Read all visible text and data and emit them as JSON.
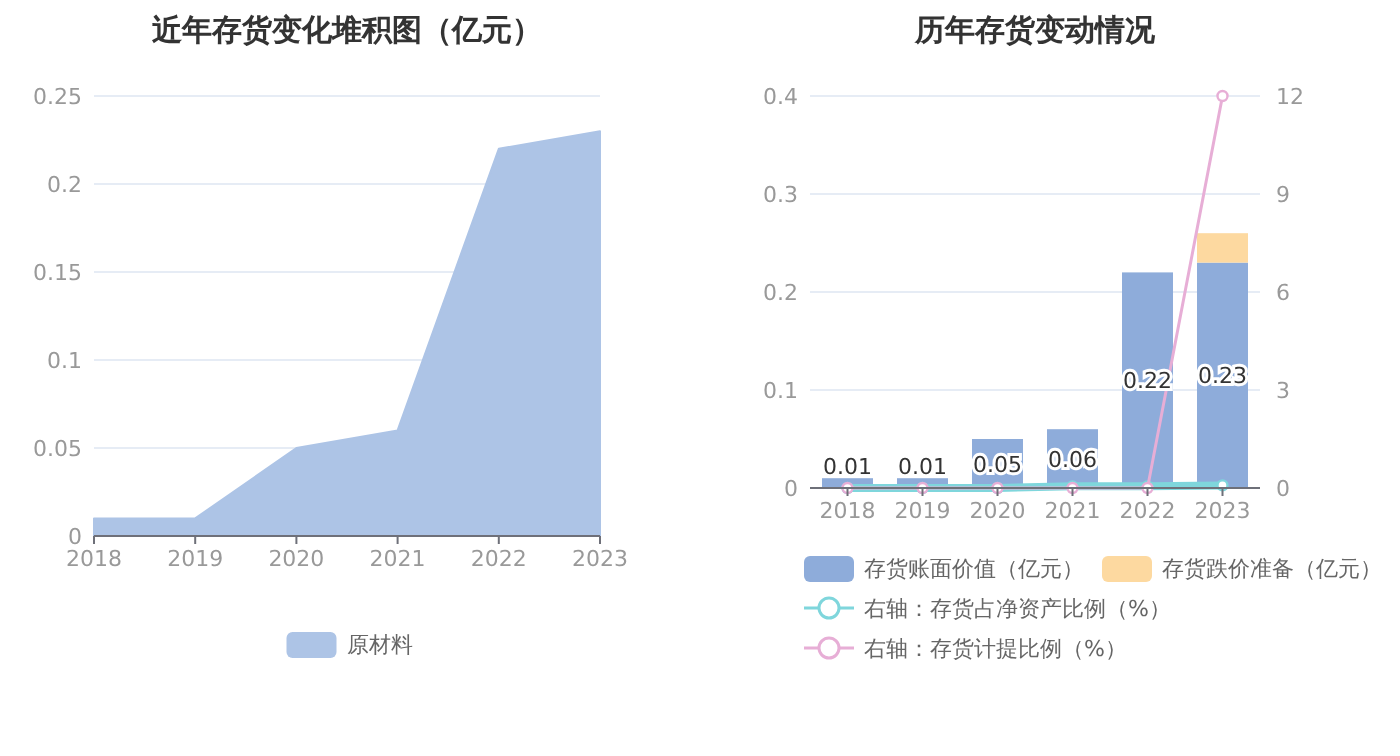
{
  "chart_data": [
    {
      "type": "area",
      "title": "近年存货变化堆积图（亿元）",
      "categories": [
        "2018",
        "2019",
        "2020",
        "2021",
        "2022",
        "2023"
      ],
      "series": [
        {
          "name": "原材料",
          "color": "#adc4e6",
          "values": [
            0.01,
            0.01,
            0.05,
            0.06,
            0.22,
            0.23
          ]
        }
      ],
      "ylim": [
        0,
        0.25
      ],
      "yticks": [
        0,
        0.05,
        0.1,
        0.15,
        0.2,
        0.25
      ],
      "grid": "y",
      "legend": "bottom"
    },
    {
      "type": "bar",
      "title": "历年存货变动情况",
      "categories": [
        "2018",
        "2019",
        "2020",
        "2021",
        "2022",
        "2023"
      ],
      "stacked": true,
      "series": [
        {
          "name": "存货账面价值（亿元）",
          "color": "#8eacda",
          "values": [
            0.01,
            0.01,
            0.05,
            0.06,
            0.22,
            0.23
          ],
          "value_labels": [
            "0.01",
            "0.01",
            "0.05",
            "0.06",
            "0.22",
            "0.23"
          ]
        },
        {
          "name": "存货跌价准备（亿元）",
          "color": "#fdd9a0",
          "values": [
            0,
            0,
            0,
            0,
            0,
            0.03
          ]
        },
        {
          "name": "右轴：存货占净资产比例（%）",
          "type": "line",
          "axis": "y2",
          "color": "#7fd6dc",
          "values": [
            0,
            0,
            0,
            0.05,
            0.05,
            0.08
          ]
        },
        {
          "name": "右轴：存货计提比例（%）",
          "type": "line",
          "axis": "y2",
          "color": "#e7aed6",
          "values": [
            0,
            0,
            0,
            0,
            0,
            12
          ]
        }
      ],
      "ylim": [
        0,
        0.4
      ],
      "yticks": [
        0,
        0.1,
        0.2,
        0.3,
        0.4
      ],
      "y2lim": [
        0,
        12
      ],
      "y2ticks": [
        0,
        3,
        6,
        9,
        12
      ],
      "marker": "circle",
      "grid": "y",
      "legend": "bottom"
    }
  ]
}
